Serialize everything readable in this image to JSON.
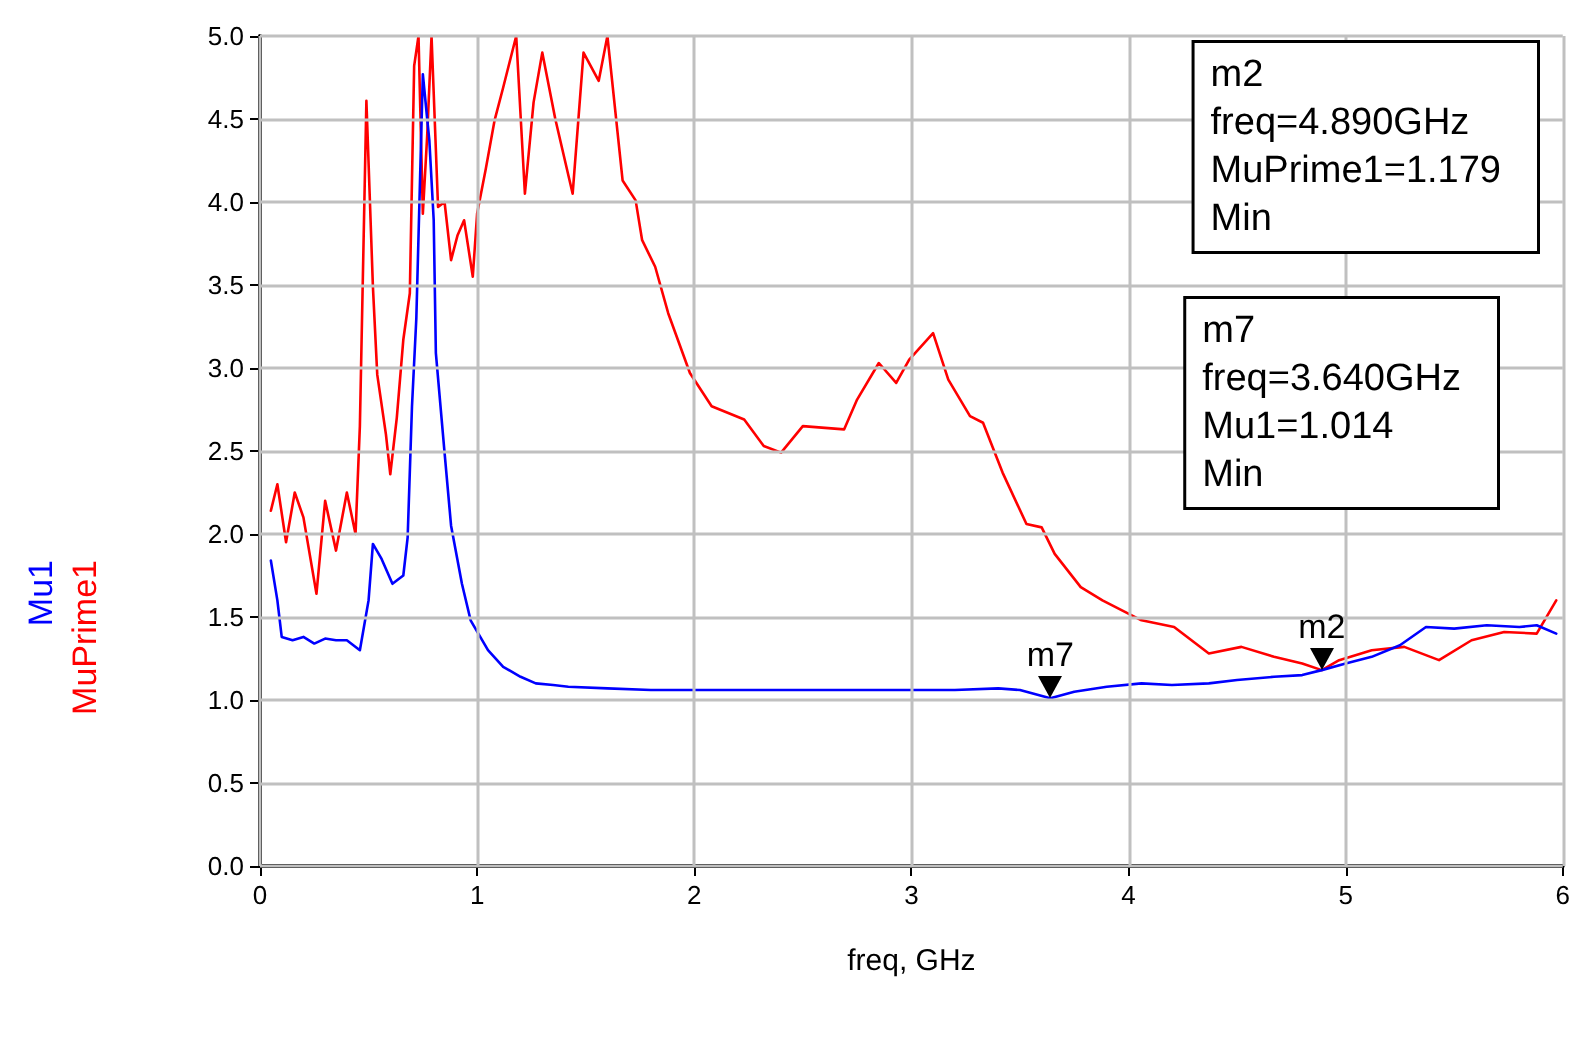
{
  "chart_data": {
    "type": "line",
    "xlabel": "freq, GHz",
    "xlim": [
      0,
      6
    ],
    "xticks": [
      0,
      1,
      2,
      3,
      4,
      5,
      6
    ],
    "ylim": [
      0,
      5
    ],
    "yticks": [
      {
        "value": 0,
        "label": "0.0"
      },
      {
        "value": 0.5,
        "label": "0.5"
      },
      {
        "value": 1,
        "label": "1.0"
      },
      {
        "value": 1.5,
        "label": "1.5"
      },
      {
        "value": 2,
        "label": "2.0"
      },
      {
        "value": 2.5,
        "label": "2.5"
      },
      {
        "value": 3,
        "label": "3.0"
      },
      {
        "value": 3.5,
        "label": "3.5"
      },
      {
        "value": 4,
        "label": "4.0"
      },
      {
        "value": 4.5,
        "label": "4.5"
      },
      {
        "value": 5,
        "label": "5.0"
      }
    ],
    "grid": true,
    "marker": "none",
    "line_style": "solid",
    "series": [
      {
        "name": "Mu1",
        "color": "#0000ff",
        "x": [
          0.05,
          0.08,
          0.1,
          0.15,
          0.2,
          0.25,
          0.3,
          0.35,
          0.4,
          0.46,
          0.5,
          0.52,
          0.56,
          0.61,
          0.66,
          0.68,
          0.7,
          0.72,
          0.75,
          0.77,
          0.78,
          0.8,
          0.81,
          0.85,
          0.88,
          0.93,
          0.97,
          1.05,
          1.12,
          1.2,
          1.27,
          1.35,
          1.42,
          1.6,
          1.8,
          2.0,
          2.2,
          2.4,
          2.6,
          2.8,
          3.0,
          3.2,
          3.4,
          3.5,
          3.64,
          3.75,
          3.9,
          4.06,
          4.2,
          4.37,
          4.5,
          4.67,
          4.8,
          4.89,
          5.0,
          5.12,
          5.25,
          5.37,
          5.5,
          5.65,
          5.8,
          5.88,
          5.97
        ],
        "values": [
          1.84,
          1.6,
          1.38,
          1.36,
          1.38,
          1.34,
          1.37,
          1.36,
          1.36,
          1.3,
          1.6,
          1.94,
          1.85,
          1.7,
          1.75,
          1.98,
          2.77,
          3.3,
          4.77,
          4.5,
          4.37,
          3.89,
          3.09,
          2.49,
          2.05,
          1.7,
          1.48,
          1.3,
          1.2,
          1.14,
          1.1,
          1.09,
          1.08,
          1.07,
          1.06,
          1.06,
          1.06,
          1.06,
          1.06,
          1.06,
          1.06,
          1.06,
          1.07,
          1.06,
          1.01,
          1.05,
          1.08,
          1.1,
          1.09,
          1.1,
          1.12,
          1.14,
          1.15,
          1.18,
          1.22,
          1.26,
          1.33,
          1.44,
          1.43,
          1.45,
          1.44,
          1.45,
          1.4
        ]
      },
      {
        "name": "MuPrime1",
        "color": "#ff0000",
        "x": [
          0.05,
          0.08,
          0.12,
          0.16,
          0.2,
          0.26,
          0.3,
          0.35,
          0.4,
          0.44,
          0.46,
          0.49,
          0.52,
          0.54,
          0.58,
          0.6,
          0.63,
          0.66,
          0.69,
          0.71,
          0.73,
          0.75,
          0.77,
          0.79,
          0.82,
          0.85,
          0.88,
          0.91,
          0.94,
          0.98,
          1.0,
          1.04,
          1.08,
          1.12,
          1.18,
          1.22,
          1.26,
          1.3,
          1.36,
          1.44,
          1.49,
          1.56,
          1.6,
          1.67,
          1.73,
          1.76,
          1.82,
          1.88,
          1.98,
          2.08,
          2.23,
          2.32,
          2.4,
          2.5,
          2.69,
          2.75,
          2.85,
          2.93,
          2.99,
          3.1,
          3.17,
          3.27,
          3.33,
          3.42,
          3.53,
          3.6,
          3.66,
          3.78,
          3.88,
          4.06,
          4.21,
          4.37,
          4.52,
          4.67,
          4.8,
          4.89,
          4.97,
          5.12,
          5.27,
          5.43,
          5.58,
          5.73,
          5.88,
          5.97
        ],
        "values": [
          2.14,
          2.3,
          1.95,
          2.25,
          2.1,
          1.64,
          2.2,
          1.9,
          2.25,
          2.0,
          2.65,
          4.61,
          3.49,
          2.96,
          2.6,
          2.36,
          2.7,
          3.17,
          3.45,
          4.82,
          5.0,
          3.93,
          4.4,
          5.0,
          3.97,
          4.0,
          3.65,
          3.8,
          3.89,
          3.55,
          3.93,
          4.2,
          4.49,
          4.69,
          5.0,
          4.05,
          4.6,
          4.9,
          4.5,
          4.05,
          4.9,
          4.73,
          5.0,
          4.13,
          4.01,
          3.77,
          3.61,
          3.33,
          2.97,
          2.77,
          2.69,
          2.53,
          2.49,
          2.65,
          2.63,
          2.81,
          3.03,
          2.91,
          3.05,
          3.21,
          2.93,
          2.71,
          2.67,
          2.37,
          2.06,
          2.04,
          1.88,
          1.68,
          1.6,
          1.48,
          1.44,
          1.28,
          1.32,
          1.26,
          1.22,
          1.18,
          1.24,
          1.3,
          1.32,
          1.24,
          1.36,
          1.41,
          1.4,
          1.6
        ]
      }
    ],
    "annotations": [
      {
        "text": "m7",
        "x": 3.64,
        "y": 1.01
      },
      {
        "text": "m2",
        "x": 4.89,
        "y": 1.18
      },
      "m2\nfreq=4.890GHz\nMuPrime1=1.179\nMin",
      "m7\nfreq=3.640GHz\nMu1=1.014\nMin"
    ]
  }
}
